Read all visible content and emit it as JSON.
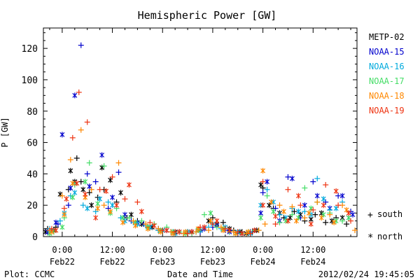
{
  "footer": {
    "left": "Plot: CCMC",
    "right": "2012/02/24 19:45:05"
  },
  "legend": {
    "south_marker": "+",
    "south_label": "south",
    "north_marker": "*",
    "north_label": "north"
  },
  "chart_data": {
    "type": "scatter",
    "title": "Hemispheric Power [GW]",
    "xlabel": "Date and Time",
    "ylabel": "P [GW]",
    "x_unit": "hours since Feb22 00:00",
    "xlim": [
      -4.5,
      70.5
    ],
    "ylim": [
      0,
      133
    ],
    "grid": false,
    "legend_position": "right",
    "y_ticks": [
      0,
      20,
      40,
      60,
      80,
      100,
      120
    ],
    "x_ticks": [
      {
        "x": 0,
        "time": "0:00",
        "date": "Feb22"
      },
      {
        "x": 12,
        "time": "12:00",
        "date": "Feb22"
      },
      {
        "x": 24,
        "time": "0:00",
        "date": "Feb23"
      },
      {
        "x": 36,
        "time": "12:00",
        "date": "Feb23"
      },
      {
        "x": 48,
        "time": "0:00",
        "date": "Feb24"
      },
      {
        "x": 60,
        "time": "12:00",
        "date": "Feb24"
      }
    ],
    "series": [
      {
        "name": "METP-02",
        "color": "#000000",
        "south": [
          [
            -3.5,
            5
          ],
          [
            -1.5,
            6
          ],
          [
            1.5,
            30
          ],
          [
            3.5,
            50
          ],
          [
            4.5,
            35
          ],
          [
            6.5,
            28
          ],
          [
            8.5,
            25
          ],
          [
            10,
            30
          ],
          [
            13,
            22
          ],
          [
            15.5,
            12
          ],
          [
            18,
            10
          ],
          [
            20.5,
            6
          ],
          [
            23,
            4
          ],
          [
            26,
            3
          ],
          [
            29,
            2
          ],
          [
            31,
            3
          ],
          [
            33,
            4
          ],
          [
            36,
            12
          ],
          [
            38.5,
            9
          ],
          [
            41,
            4
          ],
          [
            43,
            3
          ],
          [
            45.5,
            3
          ],
          [
            48,
            31
          ],
          [
            50.5,
            18
          ],
          [
            53,
            12
          ],
          [
            55.5,
            16
          ],
          [
            58,
            10
          ],
          [
            60.5,
            14
          ],
          [
            63,
            9
          ],
          [
            65.5,
            12
          ],
          [
            68,
            8
          ]
        ],
        "north": [
          [
            -4,
            3
          ],
          [
            -2,
            4
          ],
          [
            -0.5,
            27
          ],
          [
            2,
            42
          ],
          [
            3,
            35
          ],
          [
            5,
            30
          ],
          [
            7,
            20
          ],
          [
            9.5,
            44
          ],
          [
            11.5,
            36
          ],
          [
            14,
            28
          ],
          [
            16.5,
            14
          ],
          [
            19,
            8
          ],
          [
            21.5,
            6
          ],
          [
            24,
            4
          ],
          [
            27,
            3
          ],
          [
            30,
            3
          ],
          [
            32.5,
            4
          ],
          [
            35,
            10
          ],
          [
            37,
            8
          ],
          [
            40,
            5
          ],
          [
            42.5,
            3
          ],
          [
            44,
            2
          ],
          [
            46.5,
            4
          ],
          [
            47.5,
            33
          ],
          [
            49.5,
            20
          ],
          [
            52,
            15
          ],
          [
            54.5,
            12
          ],
          [
            57,
            14
          ],
          [
            59.5,
            11
          ],
          [
            62,
            15
          ],
          [
            64.5,
            10
          ],
          [
            67,
            12
          ]
        ]
      },
      {
        "name": "NOAA-15",
        "color": "#0000cc",
        "south": [
          [
            -3,
            4
          ],
          [
            -1,
            8
          ],
          [
            1.5,
            20
          ],
          [
            4.5,
            122
          ],
          [
            6,
            40
          ],
          [
            8,
            35
          ],
          [
            11,
            18
          ],
          [
            13.5,
            41
          ],
          [
            16.5,
            10
          ],
          [
            19.5,
            8
          ],
          [
            23,
            5
          ],
          [
            26.5,
            3
          ],
          [
            30,
            2
          ],
          [
            33,
            3
          ],
          [
            36,
            6
          ],
          [
            39,
            4
          ],
          [
            42,
            2
          ],
          [
            45,
            3
          ],
          [
            48,
            28
          ],
          [
            51,
            18
          ],
          [
            54,
            38
          ],
          [
            57,
            12
          ],
          [
            60,
            35
          ],
          [
            63,
            22
          ],
          [
            66,
            26
          ],
          [
            69,
            16
          ]
        ],
        "north": [
          [
            -3.5,
            3
          ],
          [
            -1.5,
            9
          ],
          [
            0,
            65
          ],
          [
            2,
            31
          ],
          [
            3,
            90
          ],
          [
            6.5,
            32
          ],
          [
            9.5,
            52
          ],
          [
            12,
            25
          ],
          [
            15,
            14
          ],
          [
            18,
            9
          ],
          [
            21,
            6
          ],
          [
            25,
            4
          ],
          [
            28,
            3
          ],
          [
            31,
            3
          ],
          [
            34,
            5
          ],
          [
            37,
            7
          ],
          [
            40,
            3
          ],
          [
            43,
            2
          ],
          [
            46,
            4
          ],
          [
            47.5,
            15
          ],
          [
            49,
            35
          ],
          [
            52,
            10
          ],
          [
            55,
            37
          ],
          [
            58,
            20
          ],
          [
            61,
            26
          ],
          [
            64,
            18
          ],
          [
            67,
            26
          ],
          [
            69.5,
            14
          ]
        ]
      },
      {
        "name": "NOAA-16",
        "color": "#00aadd",
        "south": [
          [
            -3,
            5
          ],
          [
            -0.5,
            10
          ],
          [
            2,
            26
          ],
          [
            5,
            20
          ],
          [
            8,
            16
          ],
          [
            11,
            22
          ],
          [
            14,
            12
          ],
          [
            17,
            9
          ],
          [
            20,
            7
          ],
          [
            23,
            4
          ],
          [
            26,
            3
          ],
          [
            29,
            2
          ],
          [
            32,
            3
          ],
          [
            35,
            6
          ],
          [
            38,
            5
          ],
          [
            41,
            3
          ],
          [
            44,
            2
          ],
          [
            47,
            4
          ],
          [
            49,
            30
          ],
          [
            52,
            14
          ],
          [
            55,
            18
          ],
          [
            58,
            16
          ],
          [
            61,
            37
          ],
          [
            64,
            17
          ],
          [
            67,
            22
          ]
        ],
        "north": [
          [
            -2.5,
            4
          ],
          [
            0.5,
            15
          ],
          [
            3,
            28
          ],
          [
            6,
            18
          ],
          [
            9,
            24
          ],
          [
            12,
            20
          ],
          [
            15,
            10
          ],
          [
            18,
            8
          ],
          [
            21,
            6
          ],
          [
            24,
            4
          ],
          [
            27,
            2
          ],
          [
            30,
            3
          ],
          [
            33,
            4
          ],
          [
            36,
            8
          ],
          [
            39,
            6
          ],
          [
            42,
            3
          ],
          [
            45,
            2
          ],
          [
            47.5,
            20
          ],
          [
            50.5,
            22
          ],
          [
            53.5,
            12
          ],
          [
            56.5,
            16
          ],
          [
            59.5,
            14
          ],
          [
            62.5,
            24
          ],
          [
            65.5,
            18
          ],
          [
            68.5,
            12
          ]
        ]
      },
      {
        "name": "NOAA-17",
        "color": "#44dd66",
        "south": [
          [
            -2,
            3
          ],
          [
            0.5,
            12
          ],
          [
            3,
            33
          ],
          [
            6.5,
            47
          ],
          [
            10,
            45
          ],
          [
            13,
            18
          ],
          [
            16,
            12
          ],
          [
            19,
            10
          ],
          [
            22,
            8
          ],
          [
            25,
            6
          ],
          [
            28,
            3
          ],
          [
            31,
            2
          ],
          [
            34,
            14
          ],
          [
            37,
            6
          ],
          [
            40,
            3
          ],
          [
            43,
            2
          ],
          [
            46,
            4
          ],
          [
            49,
            26
          ],
          [
            52,
            9
          ],
          [
            55,
            14
          ],
          [
            58,
            31
          ],
          [
            61,
            22
          ],
          [
            64,
            15
          ],
          [
            67,
            10
          ]
        ],
        "north": [
          [
            -3,
            2
          ],
          [
            0,
            6
          ],
          [
            2.5,
            25
          ],
          [
            5.5,
            35
          ],
          [
            8.5,
            21
          ],
          [
            11.5,
            15
          ],
          [
            14.5,
            12
          ],
          [
            17.5,
            9
          ],
          [
            20.5,
            6
          ],
          [
            23.5,
            4
          ],
          [
            26.5,
            3
          ],
          [
            29.5,
            2
          ],
          [
            32.5,
            4
          ],
          [
            35.5,
            15
          ],
          [
            38.5,
            5
          ],
          [
            41.5,
            2
          ],
          [
            44.5,
            3
          ],
          [
            47.5,
            12
          ],
          [
            50.5,
            16
          ],
          [
            53.5,
            10
          ],
          [
            56.5,
            12
          ],
          [
            59.5,
            18
          ],
          [
            62.5,
            14
          ],
          [
            65.5,
            10
          ],
          [
            68.5,
            12
          ]
        ]
      },
      {
        "name": "NOAA-18",
        "color": "#ff8800",
        "south": [
          [
            -3,
            4
          ],
          [
            0,
            26
          ],
          [
            2,
            49
          ],
          [
            4.5,
            68
          ],
          [
            7,
            30
          ],
          [
            10,
            20
          ],
          [
            13.5,
            47
          ],
          [
            17,
            10
          ],
          [
            20,
            8
          ],
          [
            23,
            5
          ],
          [
            26,
            3
          ],
          [
            29,
            2
          ],
          [
            32,
            3
          ],
          [
            35,
            4
          ],
          [
            38,
            6
          ],
          [
            41,
            3
          ],
          [
            44,
            2
          ],
          [
            47,
            4
          ],
          [
            48.5,
            8
          ],
          [
            52,
            20
          ],
          [
            55,
            19
          ],
          [
            58,
            12
          ],
          [
            61,
            22
          ],
          [
            64,
            14
          ],
          [
            67,
            20
          ],
          [
            70,
            4
          ]
        ],
        "north": [
          [
            -2.5,
            3
          ],
          [
            0.5,
            14
          ],
          [
            2.5,
            34
          ],
          [
            5.5,
            25
          ],
          [
            8.5,
            18
          ],
          [
            11.5,
            16
          ],
          [
            14.5,
            9
          ],
          [
            17.5,
            7
          ],
          [
            20.5,
            5
          ],
          [
            23.5,
            3
          ],
          [
            26.5,
            2
          ],
          [
            29.5,
            3
          ],
          [
            32.5,
            5
          ],
          [
            35.5,
            10
          ],
          [
            38.5,
            4
          ],
          [
            41.5,
            2
          ],
          [
            44.5,
            3
          ],
          [
            48,
            42
          ],
          [
            50,
            22
          ],
          [
            53,
            16
          ],
          [
            56,
            10
          ],
          [
            59,
            15
          ],
          [
            62,
            12
          ],
          [
            65,
            9
          ],
          [
            68,
            17
          ]
        ]
      },
      {
        "name": "NOAA-19",
        "color": "#ee3311",
        "south": [
          [
            -2.5,
            5
          ],
          [
            0.5,
            18
          ],
          [
            2.5,
            63
          ],
          [
            4,
            92
          ],
          [
            6,
            73
          ],
          [
            9,
            30
          ],
          [
            12,
            38
          ],
          [
            15,
            24
          ],
          [
            18,
            22
          ],
          [
            21,
            9
          ],
          [
            24,
            4
          ],
          [
            27,
            3
          ],
          [
            30,
            2
          ],
          [
            33,
            6
          ],
          [
            36,
            8
          ],
          [
            39,
            5
          ],
          [
            42,
            3
          ],
          [
            45,
            2
          ],
          [
            48,
            35
          ],
          [
            51,
            8
          ],
          [
            54,
            30
          ],
          [
            57,
            20
          ],
          [
            60,
            17
          ],
          [
            63,
            33
          ],
          [
            66,
            20
          ],
          [
            69,
            10
          ]
        ],
        "north": [
          [
            -1.5,
            4
          ],
          [
            1,
            24
          ],
          [
            3.5,
            34
          ],
          [
            5.5,
            27
          ],
          [
            8,
            12
          ],
          [
            10.5,
            29
          ],
          [
            13,
            20
          ],
          [
            16,
            33
          ],
          [
            19,
            16
          ],
          [
            22,
            7
          ],
          [
            25,
            4
          ],
          [
            28,
            3
          ],
          [
            31,
            3
          ],
          [
            34,
            6
          ],
          [
            37,
            10
          ],
          [
            40,
            4
          ],
          [
            43,
            2
          ],
          [
            46,
            4
          ],
          [
            48,
            20
          ],
          [
            51,
            13
          ],
          [
            54,
            10
          ],
          [
            56.5,
            26
          ],
          [
            59.5,
            8
          ],
          [
            62.5,
            20
          ],
          [
            65.5,
            29
          ],
          [
            68.5,
            15
          ]
        ]
      }
    ]
  }
}
